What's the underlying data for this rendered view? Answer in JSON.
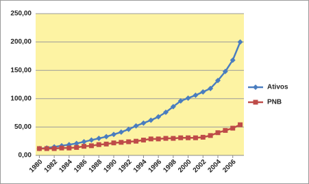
{
  "chart_data": {
    "type": "line",
    "x": [
      1980,
      1981,
      1982,
      1983,
      1984,
      1985,
      1986,
      1987,
      1988,
      1989,
      1990,
      1991,
      1992,
      1993,
      1994,
      1995,
      1996,
      1997,
      1998,
      1999,
      2000,
      2001,
      2002,
      2003,
      2004,
      2005,
      2006,
      2007
    ],
    "xlim": [
      1979.5,
      2007.5
    ],
    "xticks": [
      1980,
      1982,
      1984,
      1986,
      1988,
      1990,
      1992,
      1994,
      1996,
      1998,
      2000,
      2002,
      2004,
      2006
    ],
    "ylim": [
      0,
      250
    ],
    "yticks": [
      {
        "value": 0,
        "label": "0,00"
      },
      {
        "value": 50,
        "label": "50,00"
      },
      {
        "value": 100,
        "label": "100,00"
      },
      {
        "value": 150,
        "label": "150,00"
      },
      {
        "value": 200,
        "label": "200,00"
      },
      {
        "value": 250,
        "label": "250,00"
      }
    ],
    "grid": true,
    "legend": "right",
    "series": [
      {
        "name": "Ativos",
        "color": "#4a7dbf",
        "marker": "diamond",
        "values": [
          12,
          13,
          15,
          17,
          19,
          21,
          24,
          27,
          30,
          33,
          37,
          41,
          46,
          52,
          57,
          62,
          68,
          76,
          86,
          96,
          101,
          106,
          112,
          118,
          132,
          148,
          168,
          200
        ]
      },
      {
        "name": "PNB",
        "color": "#be4b48",
        "marker": "square",
        "values": [
          12,
          12,
          12,
          13,
          13,
          14,
          16,
          17,
          19,
          20,
          22,
          23,
          24,
          25,
          27,
          29,
          29,
          30,
          30,
          31,
          31,
          31,
          32,
          35,
          40,
          44,
          48,
          54
        ]
      }
    ]
  }
}
